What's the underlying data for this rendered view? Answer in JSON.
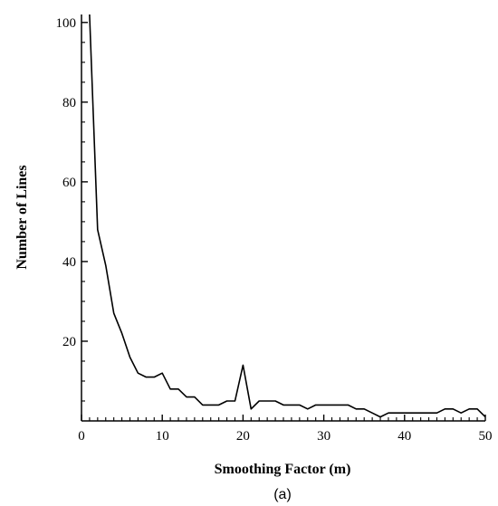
{
  "chart_data": {
    "type": "line",
    "title": "",
    "xlabel": "Smoothing Factor (m)",
    "ylabel": "Number of Lines",
    "caption": "(a)",
    "xlim": [
      0,
      50
    ],
    "ylim": [
      0,
      102
    ],
    "x_ticks": [
      0,
      10,
      20,
      30,
      40,
      50
    ],
    "y_ticks": [
      20,
      40,
      60,
      80,
      100
    ],
    "y_tick_labels": [
      "20",
      "40",
      "60",
      "80",
      "100"
    ],
    "x_tick_labels": [
      "0",
      "10",
      "20",
      "30",
      "40",
      "50"
    ],
    "grid": false,
    "legend": "none",
    "line_color": "#000000",
    "series": [
      {
        "x": [
          1,
          2,
          3,
          4,
          5,
          6,
          7,
          8,
          9,
          10,
          11,
          12,
          13,
          14,
          15,
          16,
          17,
          18,
          19,
          20,
          21,
          22,
          23,
          24,
          25,
          26,
          27,
          28,
          29,
          30,
          31,
          32,
          33,
          34,
          35,
          36,
          37,
          38,
          39,
          40,
          41,
          42,
          43,
          44,
          45,
          46,
          47,
          48,
          49,
          50
        ],
        "values": [
          102,
          48,
          39,
          27,
          22,
          16,
          12,
          11,
          11,
          12,
          8,
          8,
          6,
          6,
          4,
          4,
          4,
          5,
          5,
          14,
          3,
          5,
          5,
          5,
          4,
          4,
          4,
          3,
          4,
          4,
          4,
          4,
          4,
          3,
          3,
          2,
          1,
          2,
          2,
          2,
          2,
          2,
          2,
          2,
          3,
          3,
          2,
          3,
          3,
          1
        ]
      }
    ]
  }
}
